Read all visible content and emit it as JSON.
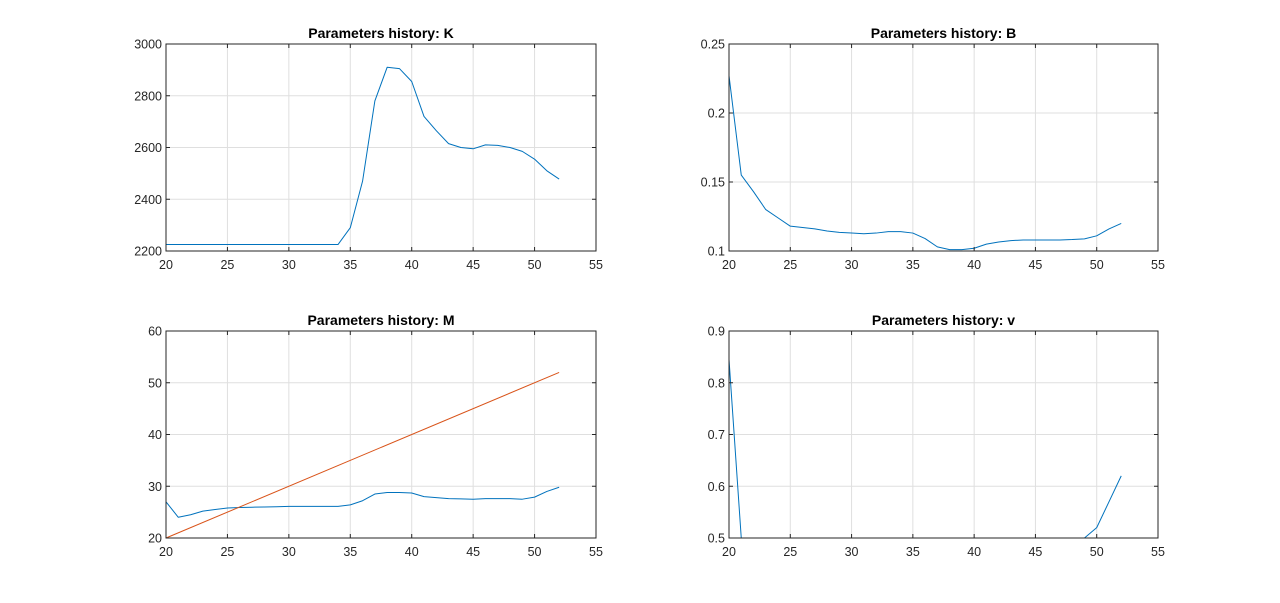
{
  "colors": {
    "series_blue": "#0072BD",
    "series_orange": "#D95319",
    "grid": "#DFDFDF",
    "axis": "#262626",
    "background": "#FFFFFF"
  },
  "chart_data": [
    {
      "type": "line",
      "title": "Parameters history: K",
      "xlim": [
        20,
        55
      ],
      "ylim": [
        2200,
        3000
      ],
      "xticks": [
        20,
        25,
        30,
        35,
        40,
        45,
        50,
        55
      ],
      "yticks": [
        2200,
        2400,
        2600,
        2800,
        3000
      ],
      "grid": true,
      "series": [
        {
          "color": "#0072BD",
          "x": [
            20,
            21,
            22,
            23,
            24,
            25,
            26,
            27,
            28,
            29,
            30,
            31,
            32,
            33,
            34,
            35,
            36,
            37,
            38,
            39,
            40,
            41,
            42,
            43,
            44,
            45,
            46,
            47,
            48,
            49,
            50,
            51,
            52
          ],
          "y": [
            2225,
            2225,
            2225,
            2225,
            2225,
            2225,
            2225,
            2225,
            2225,
            2225,
            2225,
            2225,
            2225,
            2225,
            2225,
            2290,
            2470,
            2780,
            2910,
            2905,
            2855,
            2720,
            2665,
            2615,
            2600,
            2595,
            2610,
            2608,
            2600,
            2585,
            2555,
            2510,
            2478
          ]
        }
      ]
    },
    {
      "type": "line",
      "title": "Parameters history: B",
      "xlim": [
        20,
        55
      ],
      "ylim": [
        0.1,
        0.25
      ],
      "xticks": [
        20,
        25,
        30,
        35,
        40,
        45,
        50,
        55
      ],
      "yticks": [
        0.1,
        0.15,
        0.2,
        0.25
      ],
      "grid": true,
      "series": [
        {
          "color": "#0072BD",
          "x": [
            20,
            21,
            22,
            23,
            24,
            25,
            26,
            27,
            28,
            29,
            30,
            31,
            32,
            33,
            34,
            35,
            36,
            37,
            38,
            39,
            40,
            41,
            42,
            43,
            44,
            45,
            46,
            47,
            48,
            49,
            50,
            51,
            52
          ],
          "y": [
            0.227,
            0.155,
            0.143,
            0.13,
            0.124,
            0.118,
            0.117,
            0.116,
            0.1145,
            0.1135,
            0.113,
            0.1125,
            0.113,
            0.114,
            0.114,
            0.113,
            0.109,
            0.103,
            0.101,
            0.101,
            0.102,
            0.105,
            0.1065,
            0.1075,
            0.108,
            0.108,
            0.108,
            0.108,
            0.1083,
            0.1088,
            0.111,
            0.116,
            0.12
          ]
        }
      ]
    },
    {
      "type": "line",
      "title": "Parameters history: M",
      "xlim": [
        20,
        55
      ],
      "ylim": [
        20,
        60
      ],
      "xticks": [
        20,
        25,
        30,
        35,
        40,
        45,
        50,
        55
      ],
      "yticks": [
        20,
        30,
        40,
        50,
        60
      ],
      "grid": true,
      "series": [
        {
          "color": "#0072BD",
          "x": [
            20,
            21,
            22,
            23,
            24,
            25,
            26,
            27,
            28,
            29,
            30,
            31,
            32,
            33,
            34,
            35,
            36,
            37,
            38,
            39,
            40,
            41,
            42,
            43,
            44,
            45,
            46,
            47,
            48,
            49,
            50,
            51,
            52
          ],
          "y": [
            27,
            24,
            24.5,
            25.2,
            25.5,
            25.8,
            25.9,
            25.95,
            26,
            26.05,
            26.1,
            26.1,
            26.1,
            26.1,
            26.1,
            26.4,
            27.2,
            28.5,
            28.8,
            28.8,
            28.7,
            28,
            27.8,
            27.6,
            27.55,
            27.5,
            27.6,
            27.6,
            27.6,
            27.5,
            27.9,
            29,
            29.8
          ]
        },
        {
          "color": "#D95319",
          "x": [
            20,
            52
          ],
          "y": [
            20,
            52
          ]
        }
      ]
    },
    {
      "type": "line",
      "title": "Parameters history: v",
      "xlim": [
        20,
        55
      ],
      "ylim": [
        0.5,
        0.9
      ],
      "xticks": [
        20,
        25,
        30,
        35,
        40,
        45,
        50,
        55
      ],
      "yticks": [
        0.5,
        0.6,
        0.7,
        0.8,
        0.9
      ],
      "grid": true,
      "series": [
        {
          "color": "#0072BD",
          "x": [
            20,
            21,
            22,
            23,
            24,
            25,
            26,
            27,
            28,
            29,
            30,
            31,
            32,
            33,
            34,
            35,
            36,
            37,
            38,
            39,
            40,
            41,
            42,
            43,
            44,
            45,
            46,
            47,
            48,
            49,
            50,
            51,
            52
          ],
          "y": [
            0.845,
            0.5,
            0.5,
            0.5,
            0.5,
            0.5,
            0.5,
            0.5,
            0.5,
            0.5,
            0.5,
            0.5,
            0.5,
            0.5,
            0.5,
            0.5,
            0.5,
            0.5,
            0.5,
            0.5,
            0.5,
            0.5,
            0.5,
            0.5,
            0.5,
            0.5,
            0.5,
            0.5,
            0.5,
            0.5,
            0.52,
            0.57,
            0.62
          ]
        }
      ]
    }
  ]
}
